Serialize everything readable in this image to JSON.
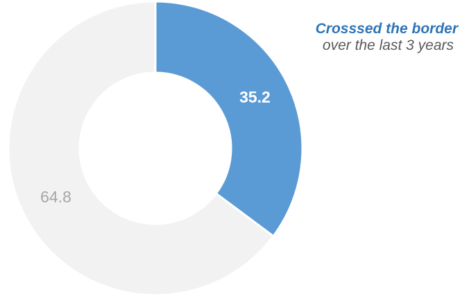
{
  "chart_data": {
    "type": "pie",
    "variant": "donut",
    "slices": [
      {
        "label": "",
        "value": 35.2,
        "display": "35.2",
        "color": "#5b9bd5",
        "label_color": "#ffffff",
        "label_bold": true
      },
      {
        "label": "",
        "value": 64.8,
        "display": "64.8",
        "color": "#f2f2f2",
        "label_color": "#a6a6a6",
        "label_bold": false
      }
    ],
    "start": "top",
    "direction": "clockwise",
    "legend": "none",
    "annotation": {
      "title": "Crosssed the border",
      "subtitle": "over the last 3 years",
      "title_color": "#2e75b6",
      "subtitle_color": "#595959"
    }
  }
}
